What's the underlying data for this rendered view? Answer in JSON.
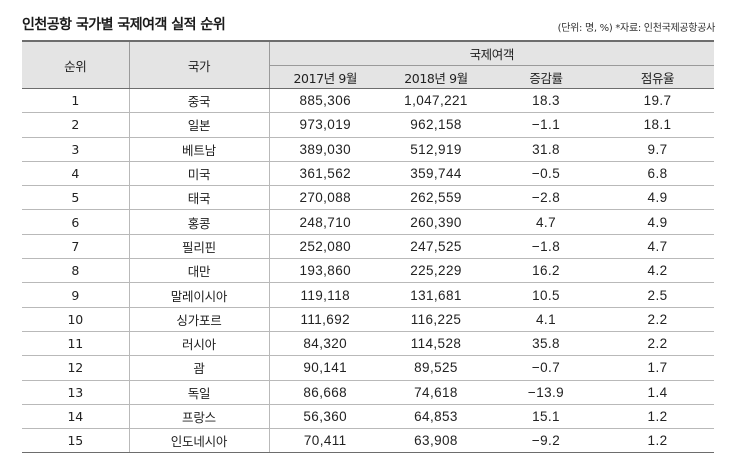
{
  "title": "인천공항 국가별 국제여객 실적 순위",
  "source_note": "(단위: 명, %) *자료: 인천국제공항공사",
  "table": {
    "header_rank": "순위",
    "header_country": "국가",
    "header_group": "국제여객",
    "header_2017": "2017년 9월",
    "header_2018": "2018년 9월",
    "header_change": "증감률",
    "header_share": "점유율",
    "rows": [
      {
        "rank": "1",
        "country": "중국",
        "y2017": "885,306",
        "y2018": "1,047,221",
        "change": "18.3",
        "share": "19.7"
      },
      {
        "rank": "2",
        "country": "일본",
        "y2017": "973,019",
        "y2018": "962,158",
        "change": "−1.1",
        "share": "18.1"
      },
      {
        "rank": "3",
        "country": "베트남",
        "y2017": "389,030",
        "y2018": "512,919",
        "change": "31.8",
        "share": "9.7"
      },
      {
        "rank": "4",
        "country": "미국",
        "y2017": "361,562",
        "y2018": "359,744",
        "change": "−0.5",
        "share": "6.8"
      },
      {
        "rank": "5",
        "country": "태국",
        "y2017": "270,088",
        "y2018": "262,559",
        "change": "−2.8",
        "share": "4.9"
      },
      {
        "rank": "6",
        "country": "홍콩",
        "y2017": "248,710",
        "y2018": "260,390",
        "change": "4.7",
        "share": "4.9"
      },
      {
        "rank": "7",
        "country": "필리핀",
        "y2017": "252,080",
        "y2018": "247,525",
        "change": "−1.8",
        "share": "4.7"
      },
      {
        "rank": "8",
        "country": "대만",
        "y2017": "193,860",
        "y2018": "225,229",
        "change": "16.2",
        "share": "4.2"
      },
      {
        "rank": "9",
        "country": "말레이시아",
        "y2017": "119,118",
        "y2018": "131,681",
        "change": "10.5",
        "share": "2.5"
      },
      {
        "rank": "10",
        "country": "싱가포르",
        "y2017": "111,692",
        "y2018": "116,225",
        "change": "4.1",
        "share": "2.2"
      },
      {
        "rank": "11",
        "country": "러시아",
        "y2017": "84,320",
        "y2018": "114,528",
        "change": "35.8",
        "share": "2.2"
      },
      {
        "rank": "12",
        "country": "괌",
        "y2017": "90,141",
        "y2018": "89,525",
        "change": "−0.7",
        "share": "1.7"
      },
      {
        "rank": "13",
        "country": "독일",
        "y2017": "86,668",
        "y2018": "74,618",
        "change": "−13.9",
        "share": "1.4"
      },
      {
        "rank": "14",
        "country": "프랑스",
        "y2017": "56,360",
        "y2018": "64,853",
        "change": "15.1",
        "share": "1.2"
      },
      {
        "rank": "15",
        "country": "인도네시아",
        "y2017": "70,411",
        "y2018": "63,908",
        "change": "−9.2",
        "share": "1.2"
      }
    ]
  }
}
